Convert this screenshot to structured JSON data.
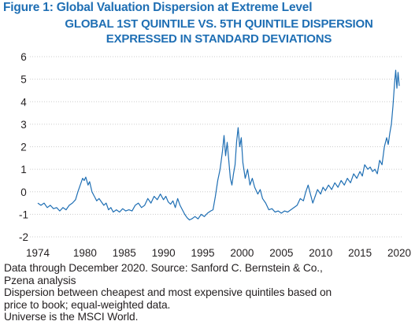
{
  "figure_title": "Figure 1: Global Valuation Dispersion at Extreme Level",
  "chart_data": {
    "type": "line",
    "title_lines": [
      "GLOBAL 1ST QUINTILE VS. 5TH QUINTILE DISPERSION",
      "EXPRESSED IN STANDARD DEVIATIONS"
    ],
    "xlabel": "",
    "ylabel": "",
    "xlim": [
      1973,
      2020.5
    ],
    "ylim": [
      -2,
      6
    ],
    "y_ticks": [
      "6",
      "5",
      "4",
      "3",
      "2",
      "1",
      "0",
      "-1",
      "-2"
    ],
    "y_tick_values": [
      6,
      5,
      4,
      3,
      2,
      1,
      0,
      -1,
      -2
    ],
    "x_ticks": [
      "1974",
      "1980",
      "1985",
      "1990",
      "1995",
      "2000",
      "2005",
      "2010",
      "2015",
      "2020"
    ],
    "x_tick_values": [
      1974,
      1980,
      1985,
      1990,
      1995,
      2000,
      2005,
      2010,
      2015,
      2020
    ],
    "grid": "horizontal",
    "series_color": "#1f6fb4",
    "grid_color": "#cccccc",
    "series": [
      {
        "points": [
          [
            1974.0,
            -0.5
          ],
          [
            1974.4,
            -0.6
          ],
          [
            1974.8,
            -0.5
          ],
          [
            1975.2,
            -0.7
          ],
          [
            1975.6,
            -0.6
          ],
          [
            1976.0,
            -0.75
          ],
          [
            1976.4,
            -0.7
          ],
          [
            1976.8,
            -0.85
          ],
          [
            1977.2,
            -0.7
          ],
          [
            1977.6,
            -0.8
          ],
          [
            1978.0,
            -0.6
          ],
          [
            1978.4,
            -0.5
          ],
          [
            1978.8,
            -0.35
          ],
          [
            1979.1,
            0.0
          ],
          [
            1979.4,
            0.3
          ],
          [
            1979.7,
            0.6
          ],
          [
            1979.9,
            0.5
          ],
          [
            1980.1,
            0.65
          ],
          [
            1980.4,
            0.3
          ],
          [
            1980.6,
            0.45
          ],
          [
            1980.9,
            0.0
          ],
          [
            1981.2,
            -0.2
          ],
          [
            1981.5,
            -0.4
          ],
          [
            1981.8,
            -0.3
          ],
          [
            1982.1,
            -0.45
          ],
          [
            1982.4,
            -0.6
          ],
          [
            1982.7,
            -0.5
          ],
          [
            1983.0,
            -0.8
          ],
          [
            1983.3,
            -0.7
          ],
          [
            1983.6,
            -0.9
          ],
          [
            1984.0,
            -0.8
          ],
          [
            1984.4,
            -0.9
          ],
          [
            1984.8,
            -0.75
          ],
          [
            1985.2,
            -0.85
          ],
          [
            1985.6,
            -0.8
          ],
          [
            1986.0,
            -0.85
          ],
          [
            1986.4,
            -0.6
          ],
          [
            1986.8,
            -0.5
          ],
          [
            1987.2,
            -0.7
          ],
          [
            1987.6,
            -0.6
          ],
          [
            1988.0,
            -0.3
          ],
          [
            1988.4,
            -0.5
          ],
          [
            1988.8,
            -0.2
          ],
          [
            1989.2,
            -0.35
          ],
          [
            1989.6,
            -0.1
          ],
          [
            1990.0,
            -0.35
          ],
          [
            1990.3,
            -0.2
          ],
          [
            1990.6,
            -0.45
          ],
          [
            1990.9,
            -0.55
          ],
          [
            1991.2,
            -0.4
          ],
          [
            1991.5,
            -0.7
          ],
          [
            1991.8,
            -0.3
          ],
          [
            1992.1,
            -0.6
          ],
          [
            1992.4,
            -0.8
          ],
          [
            1992.7,
            -1.0
          ],
          [
            1993.0,
            -1.15
          ],
          [
            1993.3,
            -1.25
          ],
          [
            1993.6,
            -1.2
          ],
          [
            1994.0,
            -1.1
          ],
          [
            1994.4,
            -1.2
          ],
          [
            1994.8,
            -1.0
          ],
          [
            1995.2,
            -1.1
          ],
          [
            1995.6,
            -0.95
          ],
          [
            1996.0,
            -0.85
          ],
          [
            1996.3,
            -0.8
          ],
          [
            1996.6,
            -0.2
          ],
          [
            1996.9,
            0.5
          ],
          [
            1997.2,
            1.0
          ],
          [
            1997.5,
            1.8
          ],
          [
            1997.7,
            2.5
          ],
          [
            1997.9,
            1.6
          ],
          [
            1998.1,
            2.2
          ],
          [
            1998.3,
            1.4
          ],
          [
            1998.5,
            0.6
          ],
          [
            1998.7,
            0.3
          ],
          [
            1998.9,
            0.8
          ],
          [
            1999.1,
            1.2
          ],
          [
            1999.3,
            2.2
          ],
          [
            1999.5,
            2.85
          ],
          [
            1999.7,
            2.0
          ],
          [
            1999.9,
            2.4
          ],
          [
            2000.1,
            1.3
          ],
          [
            2000.4,
            0.6
          ],
          [
            2000.7,
            1.0
          ],
          [
            2001.0,
            0.3
          ],
          [
            2001.3,
            0.6
          ],
          [
            2001.6,
            0.2
          ],
          [
            2002.0,
            -0.1
          ],
          [
            2002.3,
            0.1
          ],
          [
            2002.6,
            -0.3
          ],
          [
            2003.0,
            -0.5
          ],
          [
            2003.4,
            -0.8
          ],
          [
            2003.8,
            -0.75
          ],
          [
            2004.2,
            -0.9
          ],
          [
            2004.6,
            -0.85
          ],
          [
            2005.0,
            -0.95
          ],
          [
            2005.4,
            -0.85
          ],
          [
            2005.8,
            -0.9
          ],
          [
            2006.2,
            -0.8
          ],
          [
            2006.6,
            -0.7
          ],
          [
            2007.0,
            -0.6
          ],
          [
            2007.4,
            -0.3
          ],
          [
            2007.8,
            -0.4
          ],
          [
            2008.1,
            0.0
          ],
          [
            2008.4,
            0.3
          ],
          [
            2008.7,
            -0.1
          ],
          [
            2009.0,
            -0.5
          ],
          [
            2009.3,
            -0.2
          ],
          [
            2009.6,
            0.1
          ],
          [
            2010.0,
            -0.1
          ],
          [
            2010.3,
            0.2
          ],
          [
            2010.6,
            0.05
          ],
          [
            2011.0,
            0.3
          ],
          [
            2011.4,
            0.1
          ],
          [
            2011.8,
            0.4
          ],
          [
            2012.2,
            0.2
          ],
          [
            2012.6,
            0.5
          ],
          [
            2013.0,
            0.3
          ],
          [
            2013.4,
            0.6
          ],
          [
            2013.8,
            0.4
          ],
          [
            2014.2,
            0.8
          ],
          [
            2014.6,
            0.6
          ],
          [
            2015.0,
            0.9
          ],
          [
            2015.3,
            0.7
          ],
          [
            2015.6,
            1.2
          ],
          [
            2016.0,
            1.0
          ],
          [
            2016.3,
            1.1
          ],
          [
            2016.6,
            0.9
          ],
          [
            2016.9,
            1.0
          ],
          [
            2017.2,
            0.8
          ],
          [
            2017.5,
            1.4
          ],
          [
            2017.8,
            1.2
          ],
          [
            2018.1,
            2.0
          ],
          [
            2018.4,
            2.4
          ],
          [
            2018.6,
            2.1
          ],
          [
            2018.8,
            2.6
          ],
          [
            2019.0,
            3.0
          ],
          [
            2019.2,
            3.8
          ],
          [
            2019.4,
            4.8
          ],
          [
            2019.55,
            5.4
          ],
          [
            2019.7,
            4.6
          ],
          [
            2019.85,
            5.3
          ],
          [
            2020.0,
            4.7
          ]
        ]
      }
    ]
  },
  "notes": [
    "Data through December 2020. Source: Sanford C. Bernstein & Co.,",
    "Pzena analysis",
    "Dispersion between cheapest and most expensive quintiles based on",
    "price to book; equal-weighted data.",
    "Universe is the MSCI World."
  ]
}
